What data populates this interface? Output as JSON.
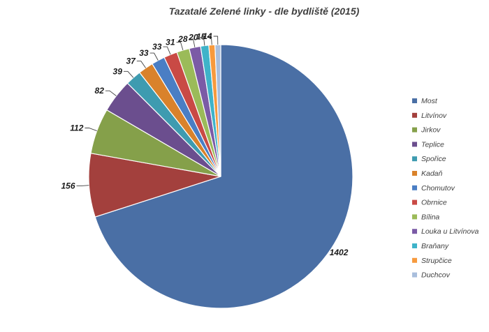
{
  "chart_data": {
    "type": "pie",
    "title": "Tazatalé  Zelené linky - dle bydliště (2015)",
    "legend_position": "right",
    "slices": [
      {
        "label": "Most",
        "value": 1402,
        "color": "#4A6FA5"
      },
      {
        "label": "Litvínov",
        "value": 156,
        "color": "#A3403D"
      },
      {
        "label": "Jirkov",
        "value": 112,
        "color": "#85A04A"
      },
      {
        "label": "Teplice",
        "value": 82,
        "color": "#6B4E8E"
      },
      {
        "label": "Spořice",
        "value": 39,
        "color": "#3E9BB0"
      },
      {
        "label": "Kadaň",
        "value": 37,
        "color": "#D9822B"
      },
      {
        "label": "Chomutov",
        "value": 33,
        "color": "#4A7EC4"
      },
      {
        "label": "Obrnice",
        "value": 33,
        "color": "#C94A45"
      },
      {
        "label": "Bílina",
        "value": 31,
        "color": "#9BBB59"
      },
      {
        "label": "Louka u Litvínova",
        "value": 28,
        "color": "#7B5BA6"
      },
      {
        "label": "Braňany",
        "value": 20,
        "color": "#3FB3C9"
      },
      {
        "label": "Strupčice",
        "value": 15,
        "color": "#F79A3E"
      },
      {
        "label": "Duchcov",
        "value": 14,
        "color": "#A9BEDC"
      }
    ]
  }
}
